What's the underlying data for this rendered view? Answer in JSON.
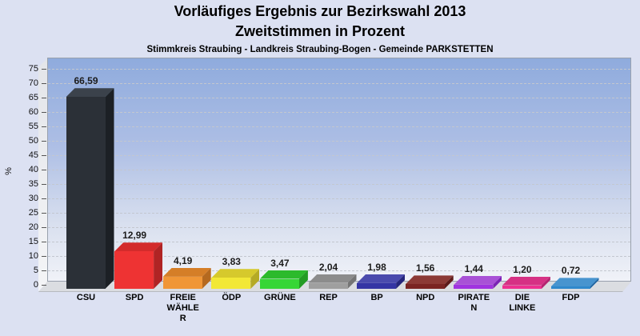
{
  "header": {
    "title_line1": "Vorläufiges Ergebnis zur Bezirkswahl 2013",
    "title_line2": "Zweitstimmen in Prozent",
    "subtitle": "Stimmkreis Straubing - Landkreis Straubing-Bogen - Gemeinde PARKSTETTEN"
  },
  "chart_data": {
    "type": "bar",
    "title": "Vorläufiges Ergebnis zur Bezirkswahl 2013 - Zweitstimmen in Prozent",
    "subtitle": "Stimmkreis Straubing - Landkreis Straubing-Bogen - Gemeinde PARKSTETTEN",
    "xlabel": "",
    "ylabel": "%",
    "ylim": [
      0,
      75
    ],
    "ytick_step": 5,
    "yticks": [
      0,
      5,
      10,
      15,
      20,
      25,
      30,
      35,
      40,
      45,
      50,
      55,
      60,
      65,
      70,
      75
    ],
    "grid": "dashed-horizontal",
    "legend_position": "none",
    "style": "3d-bars-on-gradient-wall",
    "categories": [
      "CSU",
      "SPD",
      "FREIE WÄHLER",
      "ÖDP",
      "GRÜNE",
      "REP",
      "BP",
      "NPD",
      "PIRATEN",
      "DIE LINKE",
      "FDP"
    ],
    "category_display": [
      "CSU",
      "SPD",
      "FREIE\nWÄHLE\nR",
      "ÖDP",
      "GRÜNE",
      "REP",
      "BP",
      "NPD",
      "PIRATE\nN",
      "DIE\nLINKE",
      "FDP"
    ],
    "values": [
      66.59,
      12.99,
      4.19,
      3.83,
      3.47,
      2.04,
      1.98,
      1.56,
      1.44,
      1.2,
      0.72
    ],
    "value_labels": [
      "66,59",
      "12,99",
      "4,19",
      "3,83",
      "3,47",
      "2,04",
      "1,98",
      "1,56",
      "1,44",
      "1,20",
      "0,72"
    ],
    "bar_colors_front": [
      "#2b3037",
      "#ee3333",
      "#f09636",
      "#f2e836",
      "#36d636",
      "#9f9f9f",
      "#3434a4",
      "#7a2422",
      "#a033e0",
      "#ee3090",
      "#2f88cc"
    ],
    "bar_colors_top": [
      "#3b424b",
      "#d32b2b",
      "#d57e27",
      "#d6c92c",
      "#2cba2c",
      "#8c8c8c",
      "#4a4aad",
      "#8c3a36",
      "#a851d6",
      "#d63184",
      "#4794cf"
    ],
    "bar_colors_side": [
      "#1c2025",
      "#b02424",
      "#b5691f",
      "#b5aa24",
      "#239c23",
      "#757575",
      "#25257c",
      "#5d1b1a",
      "#7b24b4",
      "#b52470",
      "#1f64a0"
    ],
    "background_gradient_top": "#8fabdd",
    "background_gradient_bottom": "#f0f2f8",
    "page_background": "#dce1f2"
  }
}
